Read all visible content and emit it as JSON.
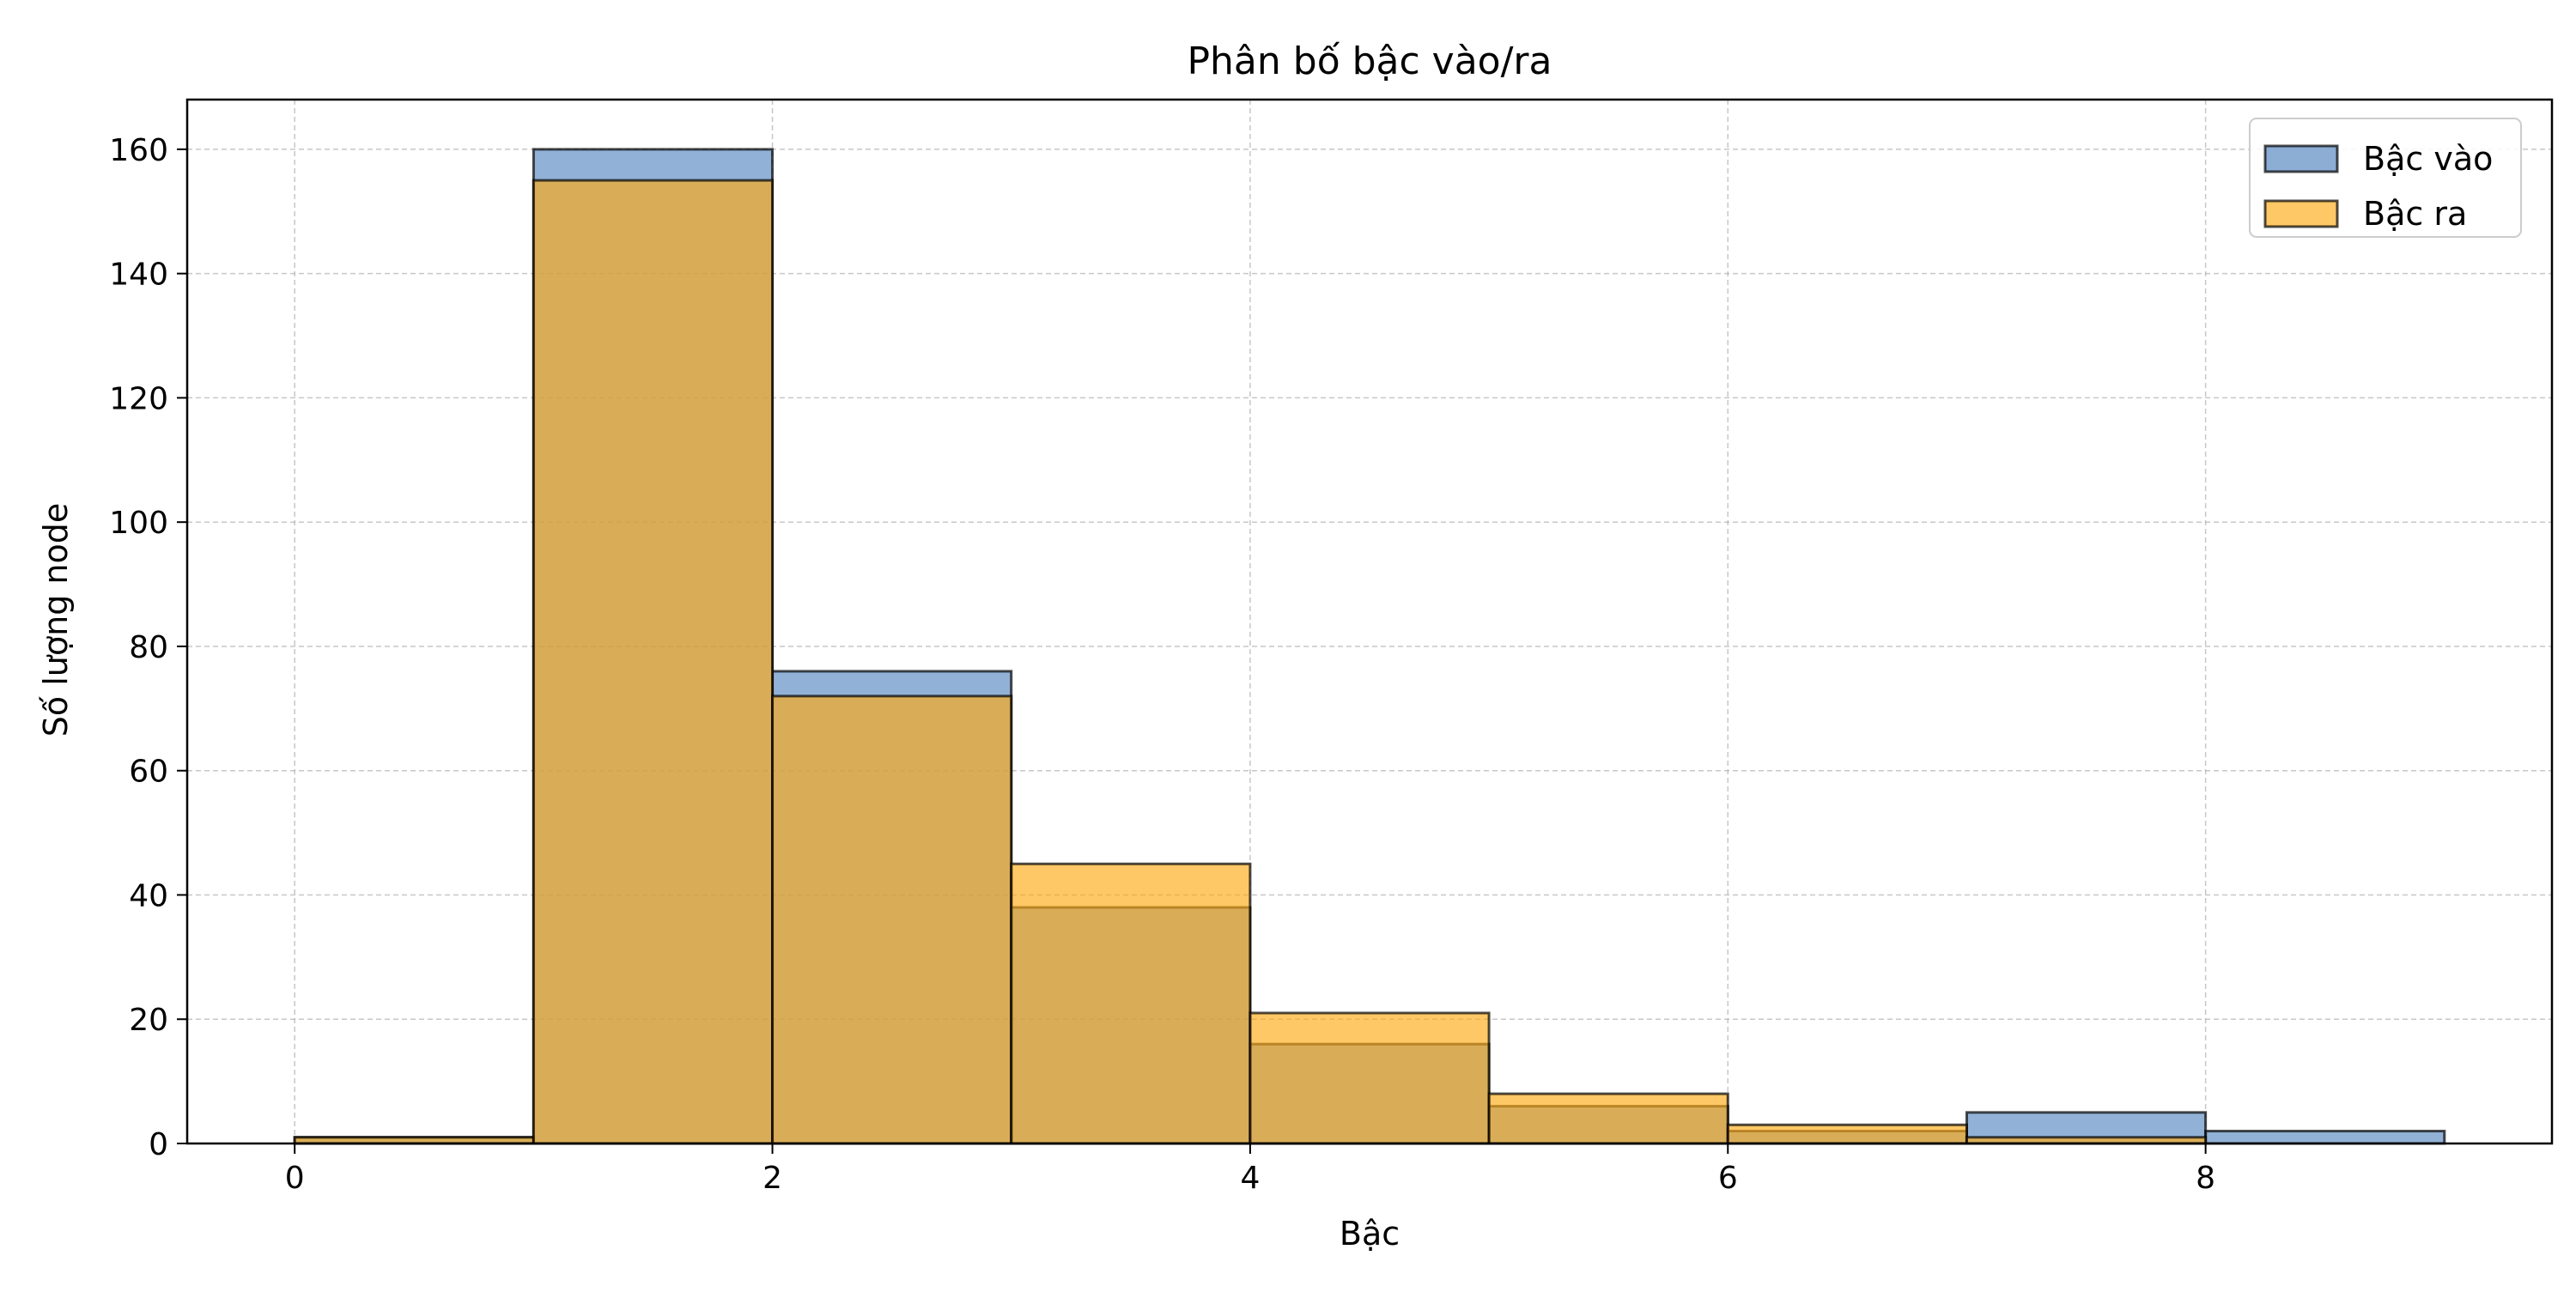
{
  "chart_data": {
    "type": "bar",
    "title": "Phân bố bậc vào/ra",
    "xlabel": "Bậc",
    "ylabel": "Số lượng node",
    "xlim": [
      -0.45,
      9.45
    ],
    "ylim": [
      0,
      168
    ],
    "x_ticks": [
      "0",
      "2",
      "4",
      "6",
      "8"
    ],
    "y_ticks": [
      "0",
      "20",
      "40",
      "60",
      "80",
      "100",
      "120",
      "140",
      "160"
    ],
    "grid": true,
    "legend_position": "top-right",
    "bin_edges": [
      0,
      1,
      2,
      3,
      4,
      5,
      6,
      7,
      8,
      9
    ],
    "series": [
      {
        "name": "Bậc vào",
        "color": "#4f81bd",
        "values": [
          1,
          160,
          76,
          38,
          16,
          6,
          2,
          5,
          2
        ]
      },
      {
        "name": "Bậc ra",
        "color": "#ffaa14",
        "values": [
          1,
          155,
          72,
          45,
          21,
          8,
          3,
          1,
          0
        ]
      }
    ]
  }
}
